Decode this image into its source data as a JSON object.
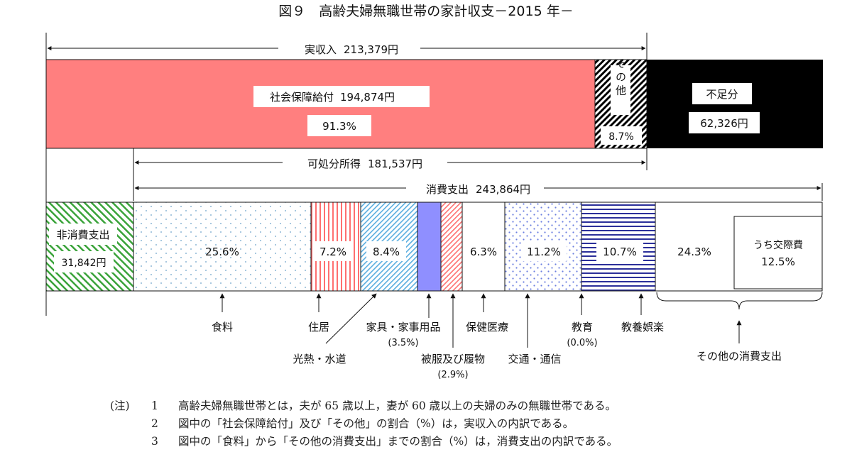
{
  "title": "図９　高齢夫婦無職世帯の家計収支－2015 年－",
  "chart_data": {
    "type": "bar",
    "title": "図９　高齢夫婦無職世帯の家計収支－2015 年－",
    "income": {
      "label": "実収入",
      "value_text": "213,379円",
      "value": 213379,
      "segments": [
        {
          "label": "社会保障給付",
          "value_text": "194,874円",
          "value": 194874,
          "percent": 91.3,
          "percent_text": "91.3%",
          "color": "#ff7f7f"
        },
        {
          "label": "その他",
          "percent": 8.7,
          "percent_text": "8.7%",
          "pattern": "diagonal-hatch"
        }
      ]
    },
    "deficit": {
      "label": "不足分",
      "value_text": "62,326円",
      "value": 62326,
      "color": "#000000"
    },
    "disposable_income": {
      "label": "可処分所得",
      "value_text": "181,537円",
      "value": 181537
    },
    "consumption": {
      "label": "消費支出",
      "value_text": "243,864円",
      "value": 243864,
      "segments": [
        {
          "label": "食料",
          "percent": 25.6,
          "percent_text": "25.6%",
          "pattern": "dots"
        },
        {
          "label": "住居",
          "percent": 7.2,
          "percent_text": "7.2%",
          "pattern": "red-vertical-lines"
        },
        {
          "label": "光熱・水道",
          "percent": 8.4,
          "percent_text": "8.4%",
          "pattern": "blue-diagonal"
        },
        {
          "label": "家具・家事用品",
          "percent": 3.5,
          "sub": "(3.5%)",
          "color": "#8f8fff"
        },
        {
          "label": "被服及び履物",
          "percent": 2.9,
          "sub": "(2.9%)",
          "pattern": "red-diagonal"
        },
        {
          "label": "保健医療",
          "percent": 6.3,
          "percent_text": "6.3%",
          "color": "#ffffff"
        },
        {
          "label": "交通・通信",
          "percent": 11.2,
          "percent_text": "11.2%",
          "pattern": "blue-dots"
        },
        {
          "label": "教育",
          "percent": 0.0,
          "sub": "(0.0%)"
        },
        {
          "label": "教養娯楽",
          "percent": 10.7,
          "percent_text": "10.7%",
          "pattern": "navy-horizontal-lines"
        },
        {
          "label": "その他の消費支出",
          "percent": 24.3,
          "percent_text": "24.3%",
          "color": "#ffffff",
          "inner": {
            "label": "うち交際費",
            "percent": 12.5,
            "percent_text": "12.5%"
          }
        }
      ]
    },
    "non_consumption": {
      "label": "非消費支出",
      "value_text": "31,842円",
      "value": 31842,
      "pattern": "green-diagonal"
    }
  },
  "notes": {
    "prefix": "(注)",
    "items": [
      {
        "num": "1",
        "text": "高齢夫婦無職世帯とは，夫が 65 歳以上，妻が 60 歳以上の夫婦のみの無職世帯である。"
      },
      {
        "num": "2",
        "text": "図中の「社会保障給付」及び「その他」の割合（%）は，実収入の内訳である。"
      },
      {
        "num": "3",
        "text": "図中の「食料」から「その他の消費支出」までの割合（%）は，消費支出の内訳である。"
      }
    ]
  }
}
